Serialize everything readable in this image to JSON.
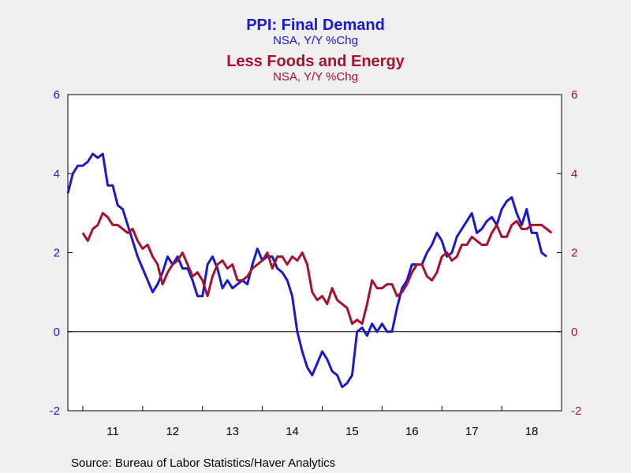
{
  "chart_data": {
    "type": "line",
    "title": "PPI: Final Demand",
    "subtitle": "NSA, Y/Y %Chg",
    "title2": "Less Foods and Energy",
    "subtitle2": "NSA, Y/Y %Chg",
    "source": "Source:  Bureau of Labor Statistics/Haver Analytics",
    "ylim": [
      -2,
      6
    ],
    "yticks": [
      -2,
      0,
      2,
      4,
      6
    ],
    "xlim": [
      2010.75,
      2019.0
    ],
    "xtick_labels": [
      {
        "label": "11",
        "x": 2011.5
      },
      {
        "label": "12",
        "x": 2012.5
      },
      {
        "label": "13",
        "x": 2013.5
      },
      {
        "label": "14",
        "x": 2014.5
      },
      {
        "label": "15",
        "x": 2015.5
      },
      {
        "label": "16",
        "x": 2016.5
      },
      {
        "label": "17",
        "x": 2017.5
      },
      {
        "label": "18",
        "x": 2018.5
      }
    ],
    "zero_line": true,
    "grid": false,
    "series": [
      {
        "color": "#1a1acc",
        "x_start": "2010-10",
        "values": [
          3.5,
          4.0,
          4.2,
          4.2,
          4.3,
          4.5,
          4.4,
          4.5,
          3.7,
          3.7,
          3.2,
          3.1,
          2.7,
          2.3,
          1.9,
          1.6,
          1.3,
          1.0,
          1.2,
          1.5,
          1.9,
          1.7,
          1.9,
          1.6,
          1.6,
          1.3,
          0.9,
          0.9,
          1.7,
          1.9,
          1.6,
          1.1,
          1.3,
          1.1,
          1.2,
          1.3,
          1.2,
          1.7,
          2.1,
          1.8,
          1.9,
          1.9,
          1.6,
          1.5,
          1.3,
          0.9,
          0.0,
          -0.5,
          -0.9,
          -1.1,
          -0.8,
          -0.5,
          -0.7,
          -1.0,
          -1.1,
          -1.4,
          -1.3,
          -1.1,
          0.0,
          0.1,
          -0.1,
          0.2,
          0.0,
          0.2,
          0.0,
          0.0,
          0.6,
          1.1,
          1.3,
          1.7,
          1.7,
          1.7,
          2.0,
          2.2,
          2.5,
          2.3,
          1.9,
          2.0,
          2.4,
          2.6,
          2.8,
          3.0,
          2.5,
          2.6,
          2.8,
          2.9,
          2.7,
          3.1,
          3.3,
          3.4,
          3.0,
          2.7,
          3.1,
          2.5,
          2.5,
          2.0,
          1.9
        ]
      },
      {
        "color": "#a8102e",
        "x_start": "2011-01",
        "values": [
          2.5,
          2.3,
          2.6,
          2.7,
          3.0,
          2.9,
          2.7,
          2.7,
          2.6,
          2.5,
          2.6,
          2.3,
          2.1,
          2.2,
          1.9,
          1.7,
          1.2,
          1.5,
          1.7,
          1.8,
          2.0,
          1.7,
          1.4,
          1.5,
          1.3,
          0.9,
          1.4,
          1.7,
          1.8,
          1.6,
          1.7,
          1.3,
          1.3,
          1.4,
          1.6,
          1.7,
          1.8,
          2.0,
          1.6,
          1.9,
          1.9,
          1.7,
          1.9,
          1.8,
          2.0,
          1.7,
          1.0,
          0.8,
          0.9,
          0.7,
          1.1,
          0.8,
          0.7,
          0.6,
          0.2,
          0.3,
          0.2,
          0.7,
          1.3,
          1.1,
          1.1,
          1.2,
          1.2,
          0.9,
          1.0,
          1.2,
          1.5,
          1.7,
          1.7,
          1.4,
          1.3,
          1.5,
          1.9,
          2.0,
          1.8,
          1.9,
          2.2,
          2.2,
          2.4,
          2.3,
          2.2,
          2.2,
          2.5,
          2.7,
          2.4,
          2.4,
          2.7,
          2.8,
          2.6,
          2.6,
          2.7,
          2.7,
          2.7,
          2.6,
          2.5
        ]
      }
    ]
  }
}
